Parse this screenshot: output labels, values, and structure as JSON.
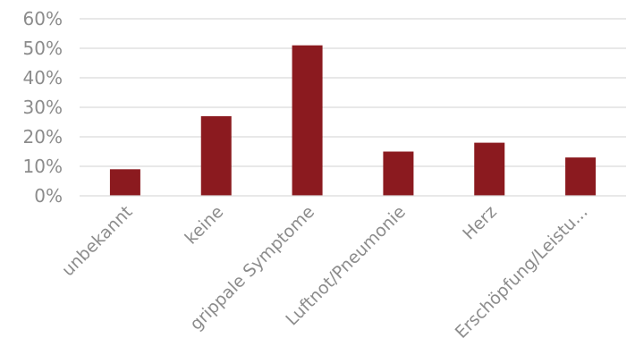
{
  "chart_data": {
    "type": "bar",
    "title": "",
    "xlabel": "",
    "ylabel": "",
    "categories": [
      "unbekannt",
      "keine",
      "grippale Symptome",
      "Luftnot/Pneumonie",
      "Herz",
      "Erschöpfung/Leistu..."
    ],
    "values": [
      0.09,
      0.27,
      0.51,
      0.15,
      0.18,
      0.13
    ],
    "ylim": [
      0,
      0.6
    ],
    "yticks": [
      {
        "value": 0,
        "label": "0%"
      },
      {
        "value": 0.1,
        "label": "10%"
      },
      {
        "value": 0.2,
        "label": "20%"
      },
      {
        "value": 0.3,
        "label": "30%"
      },
      {
        "value": 0.4,
        "label": "40%"
      },
      {
        "value": 0.5,
        "label": "50%"
      },
      {
        "value": 0.6,
        "label": "60%"
      }
    ],
    "grid": true,
    "legend": "none",
    "bar_color": "#8b1a1f"
  }
}
